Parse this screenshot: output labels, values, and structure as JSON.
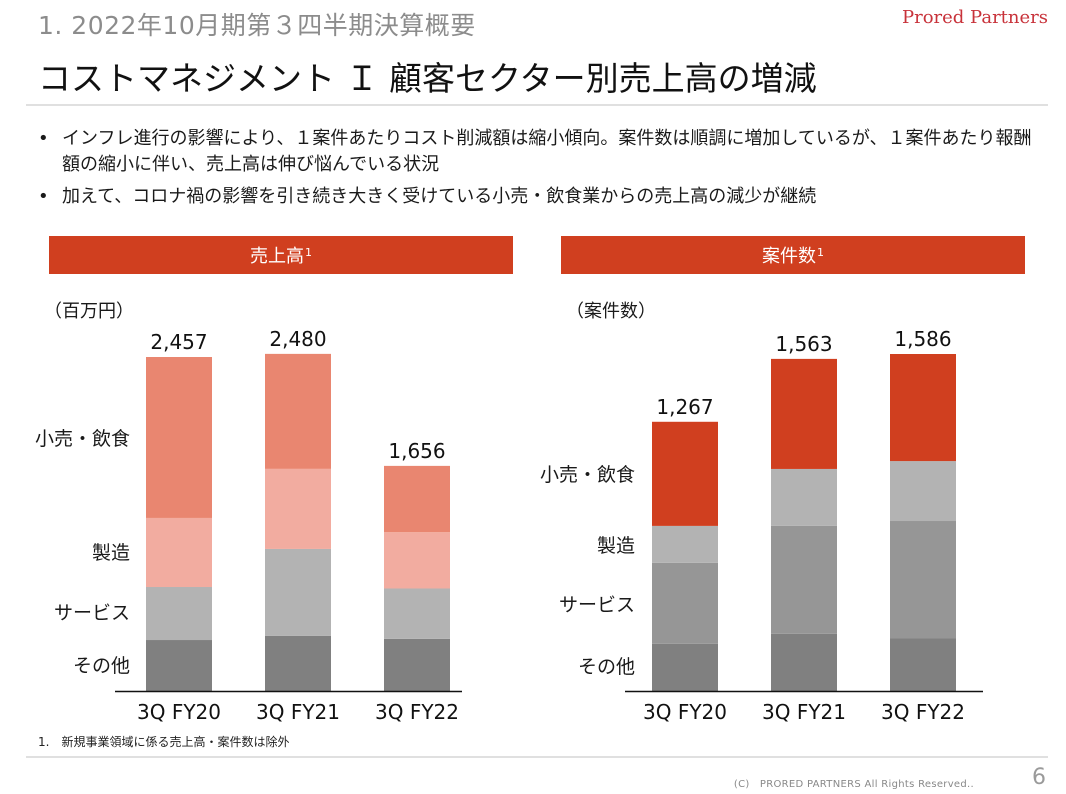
{
  "header": {
    "section_title": "1. 2022年10月期第３四半期決算概要",
    "page_title": "コストマネジメント Ｉ 顧客セクター別売上高の増減",
    "brand": "Prored Partners"
  },
  "bullets": [
    "インフレ進行の影響により、１案件あたりコスト削減額は縮小傾向。案件数は順調に増加しているが、１案件あたり報酬額の縮小に伴い、売上高は伸び悩んでいる状況",
    "加えて、コロナ禍の影響を引き続き大きく受けている小売・飲食業からの売上高の減少が継続"
  ],
  "bullet_marker": "•",
  "footer": {
    "footnote": "1.　新規事業領域に係る売上高・案件数は除外",
    "copyright": "(C)　PRORED PARTNERS All Rights Reserved..",
    "page_number": "6"
  },
  "chart_data": [
    {
      "type": "bar",
      "stacked": true,
      "title": "売上高",
      "title_footnote_marker": "1",
      "ylabel": "（百万円）",
      "categories": [
        "3Q FY20",
        "3Q FY21",
        "3Q FY22"
      ],
      "totals": [
        2457,
        2480,
        1656
      ],
      "total_labels": [
        "2,457",
        "2,480",
        "1,656"
      ],
      "series": [
        {
          "name": "その他",
          "values": [
            375,
            405,
            384
          ],
          "color": "#808080"
        },
        {
          "name": "サービス",
          "values": [
            390,
            640,
            370
          ],
          "color": "#b3b3b3"
        },
        {
          "name": "製造",
          "values": [
            508,
            589,
            414
          ],
          "color": "#f2aca0"
        },
        {
          "name": "小売・飲食",
          "values": [
            1184,
            846,
            488
          ],
          "color": "#e98670"
        }
      ],
      "ylim": [
        0,
        2600
      ],
      "grid": false,
      "legend": "left"
    },
    {
      "type": "bar",
      "stacked": true,
      "title": "案件数",
      "title_footnote_marker": "1",
      "ylabel": "（案件数）",
      "categories": [
        "3Q FY20",
        "3Q FY21",
        "3Q FY22"
      ],
      "totals": [
        1267,
        1563,
        1586
      ],
      "total_labels": [
        "1,267",
        "1,563",
        "1,586"
      ],
      "series": [
        {
          "name": "その他",
          "values": [
            222,
            269,
            249
          ],
          "color": "#808080"
        },
        {
          "name": "サービス",
          "values": [
            381,
            508,
            551
          ],
          "color": "#969696"
        },
        {
          "name": "製造",
          "values": [
            174,
            268,
            282
          ],
          "color": "#b3b3b3"
        },
        {
          "name": "小売・飲食",
          "values": [
            490,
            518,
            504
          ],
          "color": "#d03f1f"
        }
      ],
      "ylim": [
        0,
        1660
      ],
      "grid": false,
      "legend": "left"
    }
  ],
  "colors": {
    "accent": "#d03f1f",
    "brand": "#c8323a"
  }
}
